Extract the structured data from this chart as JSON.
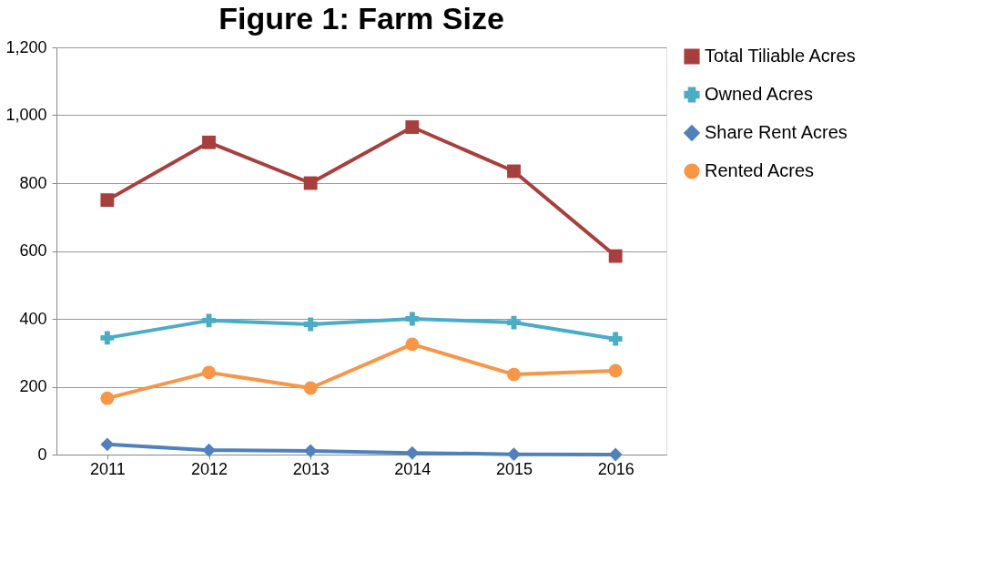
{
  "chart_data": {
    "type": "line",
    "title": "Figure 1: Farm Size",
    "categories": [
      "2011",
      "2012",
      "2013",
      "2014",
      "2015",
      "2016"
    ],
    "series": [
      {
        "name": "Total Tiliable Acres",
        "color": "#a83f3c",
        "marker": "square",
        "values": [
          750,
          920,
          800,
          965,
          835,
          585
        ]
      },
      {
        "name": "Owned Acres",
        "color": "#4bacc6",
        "marker": "cross",
        "values": [
          344,
          395,
          384,
          400,
          389,
          341
        ]
      },
      {
        "name": "Share Rent Acres",
        "color": "#4f81bd",
        "marker": "diamond",
        "values": [
          30,
          13,
          11,
          5,
          1,
          0
        ]
      },
      {
        "name": "Rented Acres",
        "color": "#f79646",
        "marker": "circle",
        "values": [
          166,
          242,
          196,
          325,
          236,
          247
        ]
      }
    ],
    "ylim": [
      0,
      1200
    ],
    "yticks": [
      0,
      200,
      400,
      600,
      800,
      {
        "value": 1000,
        "label": "1,000"
      },
      {
        "value": 1200,
        "label": "1,200"
      }
    ],
    "grid": "y",
    "legend": "right",
    "line_style": "solid"
  }
}
